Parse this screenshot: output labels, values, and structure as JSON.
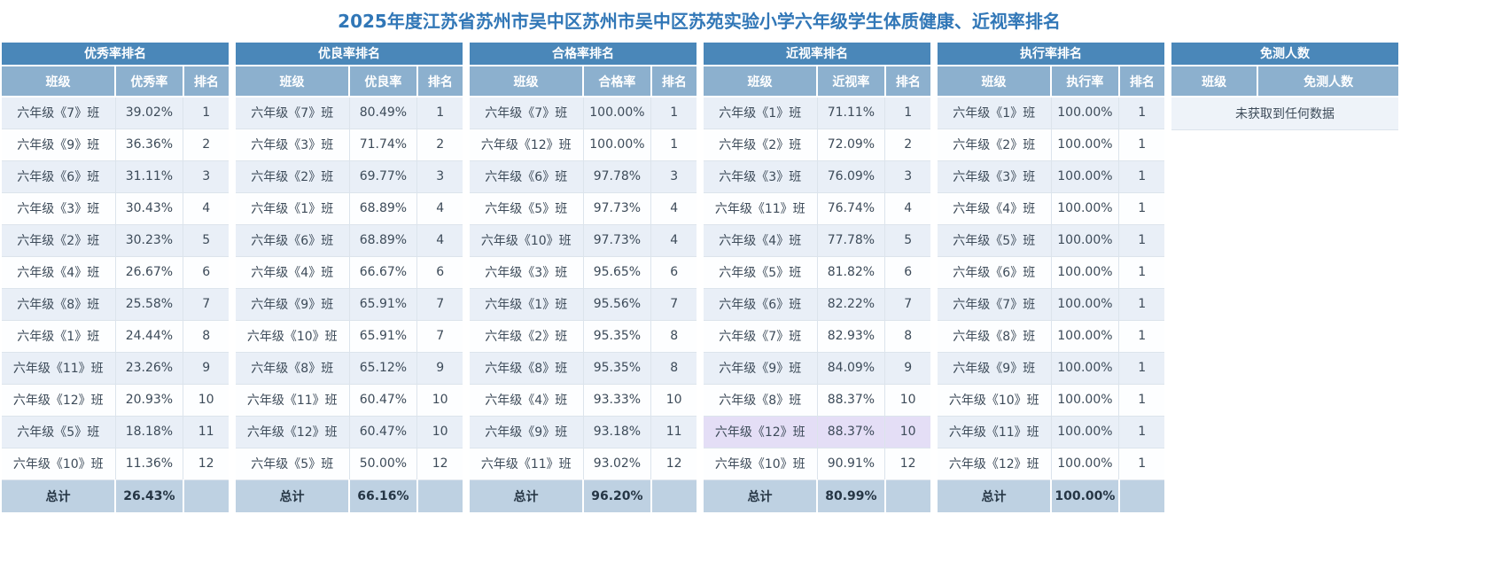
{
  "page_title": "2025年度江苏省苏州市吴中区苏州市吴中区苏苑实验小学六年级学生体质健康、近视率排名",
  "total_label": "总计",
  "colors": {
    "title_text": "#3177B7",
    "table_header_bg": "#4A87B9",
    "column_header_bg": "#8CB0CE",
    "row_odd_bg": "#E9EFF7",
    "row_even_bg": "#FDFEFF",
    "total_row_bg": "#BED1E2",
    "highlight_row_bg": "#E4DEF6"
  },
  "tables": [
    {
      "id": "excellent-rate",
      "title": "优秀率排名",
      "columns": [
        "班级",
        "优秀率",
        "排名"
      ],
      "rows": [
        [
          "六年级《7》班",
          "39.02%",
          "1"
        ],
        [
          "六年级《9》班",
          "36.36%",
          "2"
        ],
        [
          "六年级《6》班",
          "31.11%",
          "3"
        ],
        [
          "六年级《3》班",
          "30.43%",
          "4"
        ],
        [
          "六年级《2》班",
          "30.23%",
          "5"
        ],
        [
          "六年级《4》班",
          "26.67%",
          "6"
        ],
        [
          "六年级《8》班",
          "25.58%",
          "7"
        ],
        [
          "六年级《1》班",
          "24.44%",
          "8"
        ],
        [
          "六年级《11》班",
          "23.26%",
          "9"
        ],
        [
          "六年级《12》班",
          "20.93%",
          "10"
        ],
        [
          "六年级《5》班",
          "18.18%",
          "11"
        ],
        [
          "六年级《10》班",
          "11.36%",
          "12"
        ]
      ],
      "total": "26.43%"
    },
    {
      "id": "good-rate",
      "title": "优良率排名",
      "columns": [
        "班级",
        "优良率",
        "排名"
      ],
      "rows": [
        [
          "六年级《7》班",
          "80.49%",
          "1"
        ],
        [
          "六年级《3》班",
          "71.74%",
          "2"
        ],
        [
          "六年级《2》班",
          "69.77%",
          "3"
        ],
        [
          "六年级《1》班",
          "68.89%",
          "4"
        ],
        [
          "六年级《6》班",
          "68.89%",
          "4"
        ],
        [
          "六年级《4》班",
          "66.67%",
          "6"
        ],
        [
          "六年级《9》班",
          "65.91%",
          "7"
        ],
        [
          "六年级《10》班",
          "65.91%",
          "7"
        ],
        [
          "六年级《8》班",
          "65.12%",
          "9"
        ],
        [
          "六年级《11》班",
          "60.47%",
          "10"
        ],
        [
          "六年级《12》班",
          "60.47%",
          "10"
        ],
        [
          "六年级《5》班",
          "50.00%",
          "12"
        ]
      ],
      "total": "66.16%"
    },
    {
      "id": "pass-rate",
      "title": "合格率排名",
      "columns": [
        "班级",
        "合格率",
        "排名"
      ],
      "rows": [
        [
          "六年级《7》班",
          "100.00%",
          "1"
        ],
        [
          "六年级《12》班",
          "100.00%",
          "1"
        ],
        [
          "六年级《6》班",
          "97.78%",
          "3"
        ],
        [
          "六年级《5》班",
          "97.73%",
          "4"
        ],
        [
          "六年级《10》班",
          "97.73%",
          "4"
        ],
        [
          "六年级《3》班",
          "95.65%",
          "6"
        ],
        [
          "六年级《1》班",
          "95.56%",
          "7"
        ],
        [
          "六年级《2》班",
          "95.35%",
          "8"
        ],
        [
          "六年级《8》班",
          "95.35%",
          "8"
        ],
        [
          "六年级《4》班",
          "93.33%",
          "10"
        ],
        [
          "六年级《9》班",
          "93.18%",
          "11"
        ],
        [
          "六年级《11》班",
          "93.02%",
          "12"
        ]
      ],
      "total": "96.20%"
    },
    {
      "id": "myopia-rate",
      "title": "近视率排名",
      "columns": [
        "班级",
        "近视率",
        "排名"
      ],
      "rows": [
        [
          "六年级《1》班",
          "71.11%",
          "1"
        ],
        [
          "六年级《2》班",
          "72.09%",
          "2"
        ],
        [
          "六年级《3》班",
          "76.09%",
          "3"
        ],
        [
          "六年级《11》班",
          "76.74%",
          "4"
        ],
        [
          "六年级《4》班",
          "77.78%",
          "5"
        ],
        [
          "六年级《5》班",
          "81.82%",
          "6"
        ],
        [
          "六年级《6》班",
          "82.22%",
          "7"
        ],
        [
          "六年级《7》班",
          "82.93%",
          "8"
        ],
        [
          "六年级《9》班",
          "84.09%",
          "9"
        ],
        [
          "六年级《8》班",
          "88.37%",
          "10"
        ],
        [
          "六年级《12》班",
          "88.37%",
          "10"
        ],
        [
          "六年级《10》班",
          "90.91%",
          "12"
        ]
      ],
      "highlighted_row_index": 10,
      "total": "80.99%"
    },
    {
      "id": "execution-rate",
      "title": "执行率排名",
      "columns": [
        "班级",
        "执行率",
        "排名"
      ],
      "rows": [
        [
          "六年级《1》班",
          "100.00%",
          "1"
        ],
        [
          "六年级《2》班",
          "100.00%",
          "1"
        ],
        [
          "六年级《3》班",
          "100.00%",
          "1"
        ],
        [
          "六年级《4》班",
          "100.00%",
          "1"
        ],
        [
          "六年级《5》班",
          "100.00%",
          "1"
        ],
        [
          "六年级《6》班",
          "100.00%",
          "1"
        ],
        [
          "六年级《7》班",
          "100.00%",
          "1"
        ],
        [
          "六年级《8》班",
          "100.00%",
          "1"
        ],
        [
          "六年级《9》班",
          "100.00%",
          "1"
        ],
        [
          "六年级《10》班",
          "100.00%",
          "1"
        ],
        [
          "六年级《11》班",
          "100.00%",
          "1"
        ],
        [
          "六年级《12》班",
          "100.00%",
          "1"
        ]
      ],
      "total": "100.00%"
    },
    {
      "id": "exempt-count",
      "title": "免测人数",
      "columns": [
        "班级",
        "免测人数"
      ],
      "rows": [],
      "empty_message": "未获取到任何数据"
    }
  ]
}
